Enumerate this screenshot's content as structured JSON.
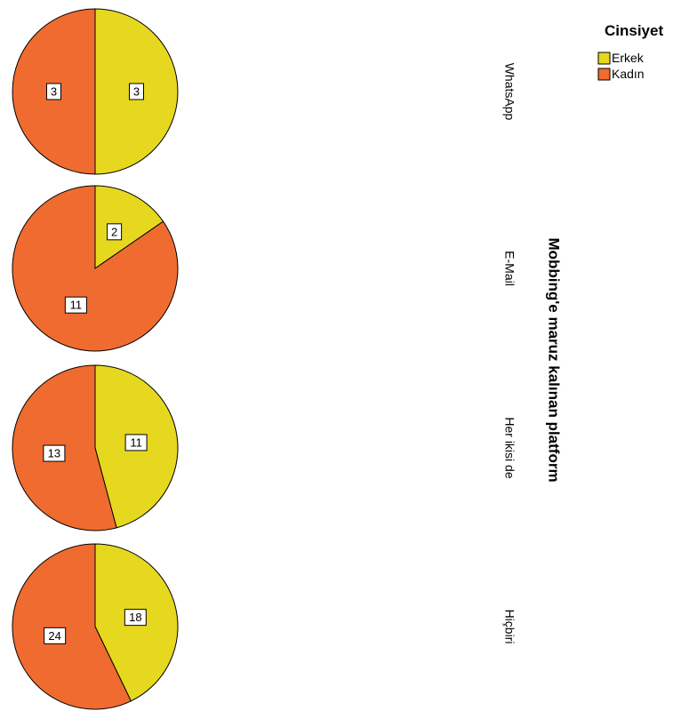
{
  "chart_data": {
    "type": "pie",
    "facet_title": "Mobbing'e maruz kalınan platform",
    "legend": {
      "title": "Cinsiyet",
      "placement": "top-right",
      "entries": [
        {
          "name": "Erkek",
          "color": "#e6d81f"
        },
        {
          "name": "Kadın",
          "color": "#f06b2f"
        }
      ]
    },
    "series_names": [
      "Erkek",
      "Kadın"
    ],
    "panels": [
      {
        "label": "WhatsApp",
        "values": [
          3,
          3
        ]
      },
      {
        "label": "E-Mail",
        "values": [
          2,
          11
        ]
      },
      {
        "label": "Her ikisi de",
        "values": [
          11,
          13
        ]
      },
      {
        "label": "Hiçbiri",
        "values": [
          18,
          24
        ]
      }
    ],
    "colors": [
      "#e6d81f",
      "#f06b2f"
    ]
  }
}
